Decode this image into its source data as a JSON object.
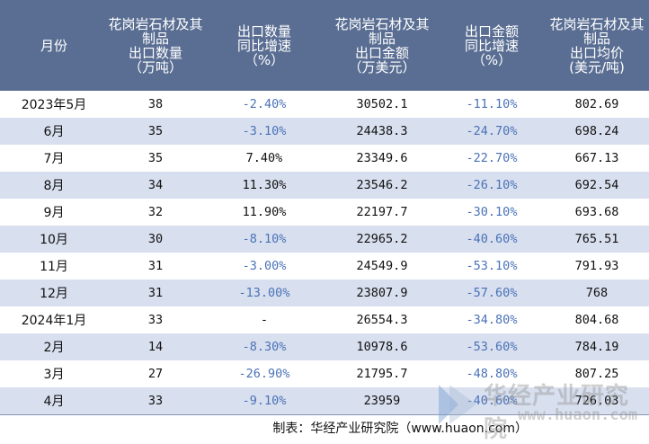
{
  "table": {
    "headers": [
      "月份",
      "花岗岩石材及其\n制品\n出口数量\n（万吨）",
      "出口数量\n同比增速\n（%）",
      "花岗岩石材及其\n制品\n出口金额\n（万美元）",
      "出口金额\n同比增速\n（%）",
      "花岗岩石材及其\n制品\n出口均价\n(美元/吨)"
    ],
    "rows": [
      [
        "2023年5月",
        "38",
        "-2.40%",
        "30502.1",
        "-11.10%",
        "802.69"
      ],
      [
        "6月",
        "35",
        "-3.10%",
        "24438.3",
        "-24.70%",
        "698.24"
      ],
      [
        "7月",
        "35",
        "7.40%",
        "23349.6",
        "-22.70%",
        "667.13"
      ],
      [
        "8月",
        "34",
        "11.30%",
        "23546.2",
        "-26.10%",
        "692.54"
      ],
      [
        "9月",
        "32",
        "11.90%",
        "22197.7",
        "-30.10%",
        "693.68"
      ],
      [
        "10月",
        "30",
        "-8.10%",
        "22965.2",
        "-40.60%",
        "765.51"
      ],
      [
        "11月",
        "31",
        "-3.00%",
        "24549.9",
        "-53.10%",
        "791.93"
      ],
      [
        "12月",
        "31",
        "-13.00%",
        "23807.9",
        "-57.60%",
        "768"
      ],
      [
        "2024年1月",
        "33",
        "-",
        "26554.3",
        "-34.80%",
        "804.68"
      ],
      [
        "2月",
        "14",
        "-8.30%",
        "10978.6",
        "-53.60%",
        "784.19"
      ],
      [
        "3月",
        "27",
        "-26.90%",
        "21795.7",
        "-48.80%",
        "807.25"
      ],
      [
        "4月",
        "33",
        "-9.10%",
        "23959",
        "-40.60%",
        "726.03"
      ]
    ]
  },
  "footer": {
    "source": "制表：华经产业研究院（www.huaon.com）"
  },
  "watermark": {
    "text": "华经产业研究院",
    "url": "www.huaon.com"
  },
  "colors": {
    "header_bg": "#5a6e93",
    "alt_row_bg": "#d8dfee",
    "negative_text": "#4a72b8"
  }
}
